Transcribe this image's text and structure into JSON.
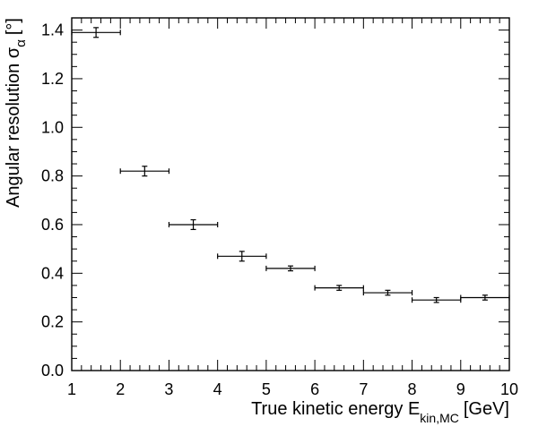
{
  "chart_data": {
    "type": "scatter",
    "xlabel": "True kinetic energy E",
    "xlabel_sub": "kin,MC",
    "xlabel_unit": "[GeV]",
    "ylabel": "Angular resolution σ",
    "ylabel_sub": "α",
    "ylabel_unit": "[°]",
    "xlim": [
      1,
      10
    ],
    "ylim": [
      0,
      1.45
    ],
    "grid": false,
    "x_ticks": [
      "1",
      "2",
      "3",
      "4",
      "5",
      "6",
      "7",
      "8",
      "9",
      "10"
    ],
    "y_ticks": [
      "0.0",
      "0.2",
      "0.4",
      "0.6",
      "0.8",
      "1.0",
      "1.2",
      "1.4"
    ],
    "series": [
      {
        "points": [
          {
            "x": 1.5,
            "y": 1.39,
            "xerr": 0.5,
            "yerr": 0.02
          },
          {
            "x": 2.5,
            "y": 0.82,
            "xerr": 0.5,
            "yerr": 0.02
          },
          {
            "x": 3.5,
            "y": 0.6,
            "xerr": 0.5,
            "yerr": 0.02
          },
          {
            "x": 4.5,
            "y": 0.47,
            "xerr": 0.5,
            "yerr": 0.02
          },
          {
            "x": 5.5,
            "y": 0.42,
            "xerr": 0.5,
            "yerr": 0.01
          },
          {
            "x": 6.5,
            "y": 0.34,
            "xerr": 0.5,
            "yerr": 0.01
          },
          {
            "x": 7.5,
            "y": 0.32,
            "xerr": 0.5,
            "yerr": 0.01
          },
          {
            "x": 8.5,
            "y": 0.29,
            "xerr": 0.5,
            "yerr": 0.01
          },
          {
            "x": 9.5,
            "y": 0.3,
            "xerr": 0.5,
            "yerr": 0.01
          }
        ]
      }
    ]
  }
}
